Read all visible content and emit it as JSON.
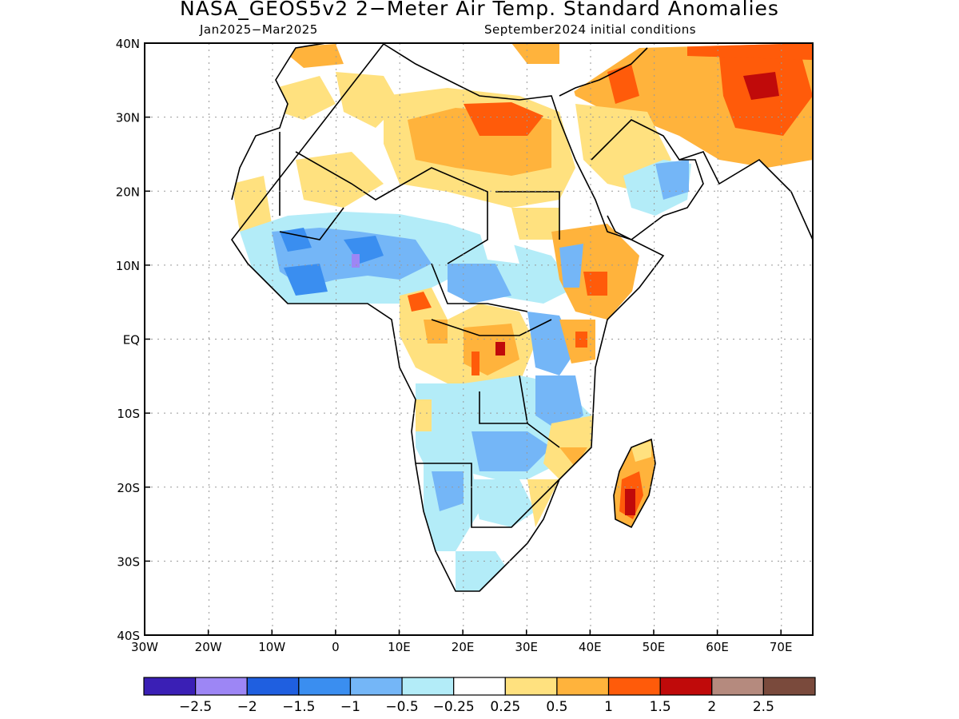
{
  "title": "NASA_GEOS5v2 2−Meter Air Temp. Standard Anomalies",
  "subtitle_left": "Jan2025−Mar2025",
  "subtitle_right": "September2024 initial conditions",
  "axes": {
    "lon_labels": [
      "30W",
      "20W",
      "10W",
      "0",
      "10E",
      "20E",
      "30E",
      "40E",
      "50E",
      "60E",
      "70E"
    ],
    "lat_labels": [
      "40N",
      "30N",
      "20N",
      "10N",
      "EQ",
      "10S",
      "20S",
      "30S",
      "40S"
    ],
    "lon_range": [
      -30,
      75
    ],
    "lat_range": [
      -40,
      40
    ],
    "grid": true
  },
  "colorbar": {
    "colors": [
      "#3a1fb5",
      "#9d86f5",
      "#1f5fe0",
      "#3a8ef0",
      "#74b6f7",
      "#b3ecf8",
      "#ffffff",
      "#ffe17f",
      "#ffb33c",
      "#ff5b0a",
      "#c00a0a",
      "#b58a7e",
      "#7a4a3c"
    ],
    "labels": [
      "−2.5",
      "−2",
      "−1.5",
      "−1",
      "−0.5",
      "−0.25",
      "0.25",
      "0.5",
      "1",
      "1.5",
      "2",
      "2.5"
    ]
  },
  "chart_data": {
    "type": "heatmap",
    "title": "NASA_GEOS5v2 2−Meter Air Temp. Standard Anomalies",
    "period": "Jan2025−Mar2025",
    "initial_conditions": "September2024 initial conditions",
    "region": "Africa",
    "x_range": [
      -30,
      75
    ],
    "y_range": [
      -40,
      40
    ],
    "scale_levels": [
      -2.5,
      -2,
      -1.5,
      -1,
      -0.5,
      -0.25,
      0.25,
      0.5,
      1,
      1.5,
      2,
      2.5
    ],
    "anomaly_areas": [
      {
        "area": "Libya / Egypt",
        "value": 1.5
      },
      {
        "area": "Iran / Afghanistan",
        "value": 1.5
      },
      {
        "area": "Arabian Peninsula north",
        "value": 0.75
      },
      {
        "area": "Sahara east",
        "value": 0.75
      },
      {
        "area": "Sahel / West Africa",
        "value": -0.75
      },
      {
        "area": "Central Africa",
        "value": 0.75
      },
      {
        "area": "Angola / Zambia",
        "value": -0.75
      },
      {
        "area": "Namibia / Botswana",
        "value": -0.5
      },
      {
        "area": "Madagascar",
        "value": 1.5
      },
      {
        "area": "East Africa",
        "value": 0.75
      },
      {
        "area": "Southern Arabia",
        "value": -0.75
      }
    ]
  }
}
